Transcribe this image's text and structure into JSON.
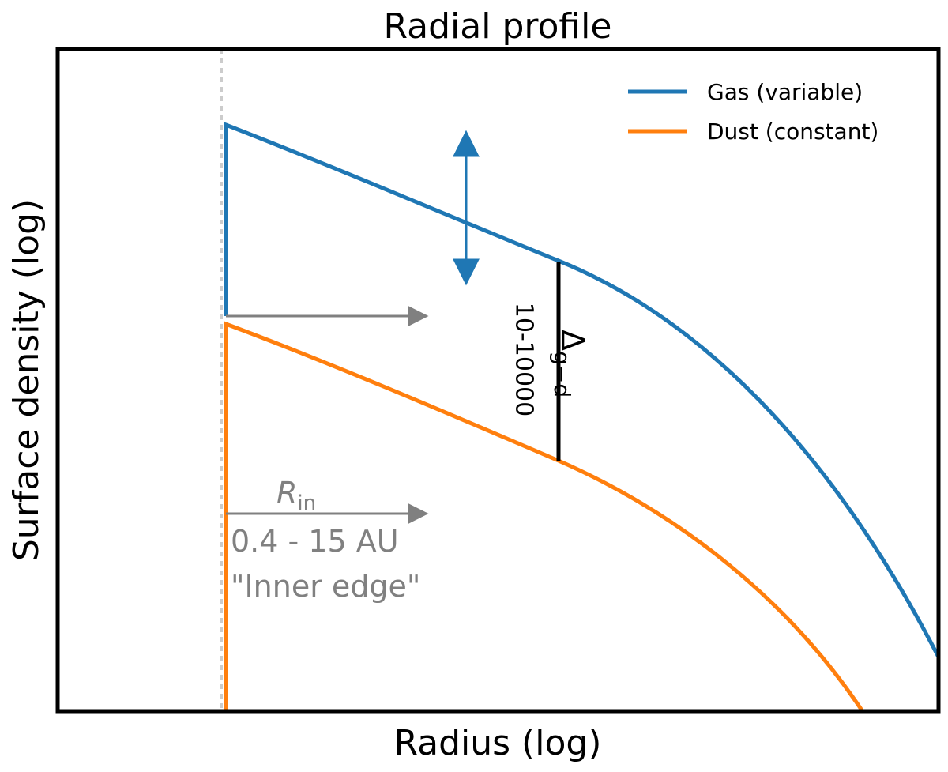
{
  "title": "Radial profile",
  "x_axis_label": "Radius (log)",
  "y_axis_label": "Surface density (log)",
  "legend": {
    "items": [
      {
        "label": "Gas (variable)"
      },
      {
        "label": "Dust (constant)"
      }
    ]
  },
  "annotations": {
    "ratio_range": "10-10000",
    "ratio_symbol": "Δ",
    "ratio_subscript": "g−d",
    "inner_radius_symbol": "R",
    "inner_radius_subscript": "in",
    "inner_radius_range": "0.4 - 15 AU",
    "inner_radius_caption": "\"Inner edge\""
  }
}
